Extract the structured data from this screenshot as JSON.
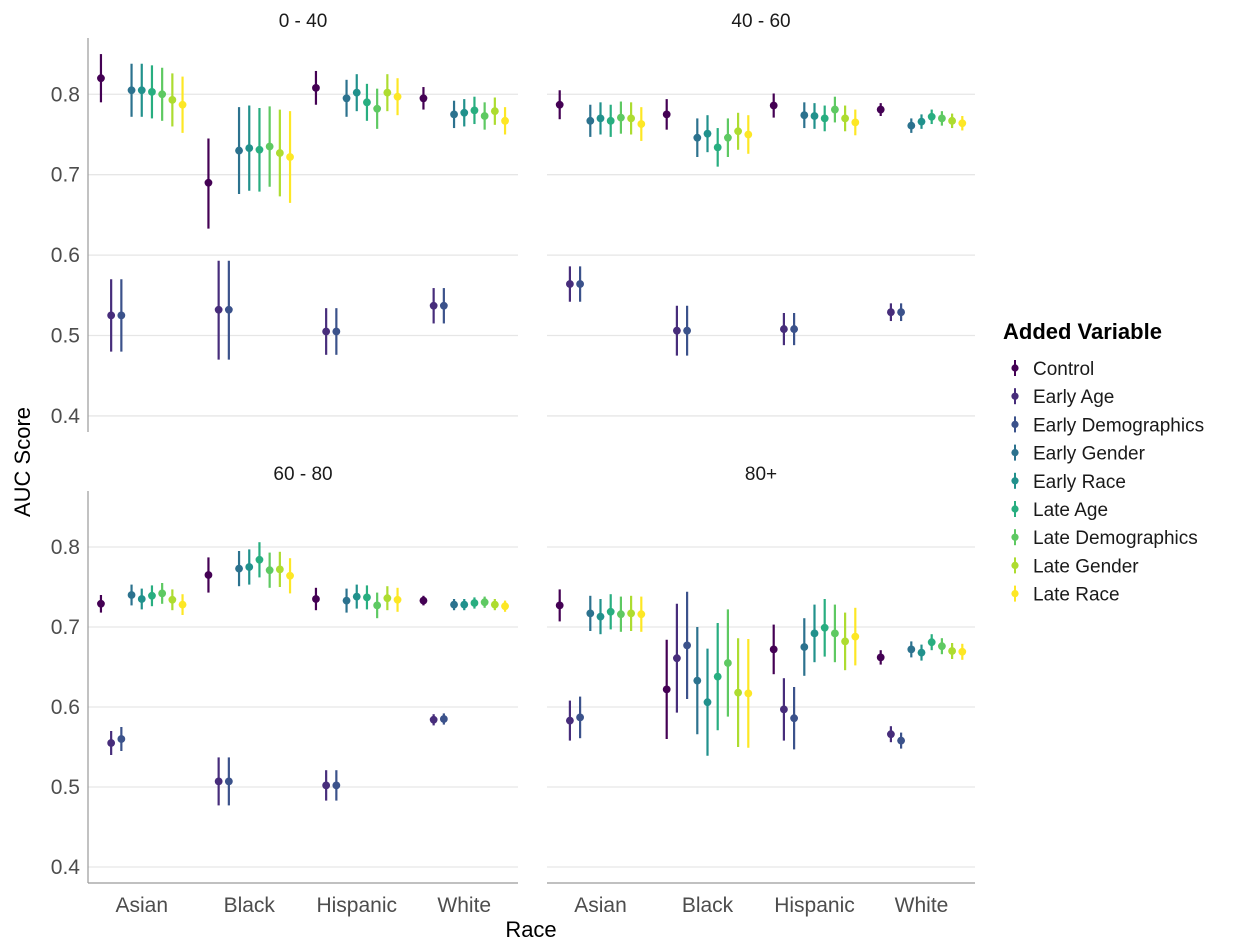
{
  "chart_data": {
    "type": "scatter",
    "subtype": "point-range (error bars), faceted 2x2",
    "xlabel": "Race",
    "ylabel": "AUC Score",
    "categories": [
      "Asian",
      "Black",
      "Hispanic",
      "White"
    ],
    "ylim": [
      0.38,
      0.87
    ],
    "y_ticks": [
      0.4,
      0.5,
      0.6,
      0.7,
      0.8
    ],
    "grid": true,
    "legend": {
      "title": "Added Variable",
      "placement": "right",
      "entries": [
        "Control",
        "Early Age",
        "Early Demographics",
        "Early Gender",
        "Early Race",
        "Late Age",
        "Late Demographics",
        "Late Gender",
        "Late Race"
      ]
    },
    "series": [
      {
        "name": "Control",
        "color": "#440154"
      },
      {
        "name": "Early Age",
        "color": "#472D7B"
      },
      {
        "name": "Early Demographics",
        "color": "#3B528B"
      },
      {
        "name": "Early Gender",
        "color": "#2C728E"
      },
      {
        "name": "Early Race",
        "color": "#21918C"
      },
      {
        "name": "Late Age",
        "color": "#28AE80"
      },
      {
        "name": "Late Demographics",
        "color": "#5EC962"
      },
      {
        "name": "Late Gender",
        "color": "#ADDC30"
      },
      {
        "name": "Late Race",
        "color": "#FDE725"
      }
    ],
    "panels": [
      {
        "title": "0 - 40",
        "data": {
          "Asian": [
            [
              0.82,
              0.79,
              0.85
            ],
            [
              0.525,
              0.48,
              0.57
            ],
            [
              0.525,
              0.48,
              0.57
            ],
            [
              0.805,
              0.772,
              0.838
            ],
            [
              0.805,
              0.772,
              0.838
            ],
            [
              0.803,
              0.77,
              0.836
            ],
            [
              0.8,
              0.767,
              0.833
            ],
            [
              0.793,
              0.76,
              0.826
            ],
            [
              0.787,
              0.752,
              0.822
            ]
          ],
          "Black": [
            [
              0.69,
              0.633,
              0.745
            ],
            [
              0.532,
              0.47,
              0.593
            ],
            [
              0.532,
              0.47,
              0.593
            ],
            [
              0.73,
              0.676,
              0.784
            ],
            [
              0.733,
              0.68,
              0.786
            ],
            [
              0.731,
              0.679,
              0.783
            ],
            [
              0.735,
              0.685,
              0.785
            ],
            [
              0.727,
              0.673,
              0.781
            ],
            [
              0.722,
              0.665,
              0.779
            ]
          ],
          "Hispanic": [
            [
              0.808,
              0.787,
              0.829
            ],
            [
              0.505,
              0.476,
              0.534
            ],
            [
              0.505,
              0.476,
              0.534
            ],
            [
              0.795,
              0.772,
              0.818
            ],
            [
              0.802,
              0.779,
              0.825
            ],
            [
              0.79,
              0.767,
              0.813
            ],
            [
              0.782,
              0.757,
              0.807
            ],
            [
              0.802,
              0.779,
              0.825
            ],
            [
              0.797,
              0.774,
              0.82
            ]
          ],
          "White": [
            [
              0.795,
              0.781,
              0.809
            ],
            [
              0.537,
              0.515,
              0.559
            ],
            [
              0.537,
              0.515,
              0.559
            ],
            [
              0.775,
              0.758,
              0.792
            ],
            [
              0.777,
              0.76,
              0.794
            ],
            [
              0.78,
              0.763,
              0.797
            ],
            [
              0.773,
              0.756,
              0.79
            ],
            [
              0.779,
              0.762,
              0.796
            ],
            [
              0.767,
              0.75,
              0.784
            ]
          ]
        }
      },
      {
        "title": "40 - 60",
        "data": {
          "Asian": [
            [
              0.787,
              0.769,
              0.805
            ],
            [
              0.564,
              0.542,
              0.586
            ],
            [
              0.564,
              0.542,
              0.586
            ],
            [
              0.767,
              0.747,
              0.787
            ],
            [
              0.77,
              0.75,
              0.79
            ],
            [
              0.767,
              0.747,
              0.787
            ],
            [
              0.771,
              0.751,
              0.791
            ],
            [
              0.77,
              0.75,
              0.79
            ],
            [
              0.763,
              0.742,
              0.784
            ]
          ],
          "Black": [
            [
              0.775,
              0.756,
              0.794
            ],
            [
              0.506,
              0.475,
              0.537
            ],
            [
              0.506,
              0.475,
              0.537
            ],
            [
              0.746,
              0.722,
              0.77
            ],
            [
              0.751,
              0.728,
              0.774
            ],
            [
              0.734,
              0.71,
              0.758
            ],
            [
              0.746,
              0.722,
              0.77
            ],
            [
              0.754,
              0.731,
              0.777
            ],
            [
              0.75,
              0.726,
              0.774
            ]
          ],
          "Hispanic": [
            [
              0.786,
              0.771,
              0.801
            ],
            [
              0.508,
              0.488,
              0.528
            ],
            [
              0.508,
              0.488,
              0.528
            ],
            [
              0.774,
              0.758,
              0.79
            ],
            [
              0.773,
              0.757,
              0.789
            ],
            [
              0.77,
              0.754,
              0.786
            ],
            [
              0.781,
              0.765,
              0.797
            ],
            [
              0.77,
              0.754,
              0.786
            ],
            [
              0.765,
              0.749,
              0.781
            ]
          ],
          "White": [
            [
              0.781,
              0.773,
              0.789
            ],
            [
              0.529,
              0.518,
              0.54
            ],
            [
              0.529,
              0.518,
              0.54
            ],
            [
              0.761,
              0.752,
              0.77
            ],
            [
              0.766,
              0.757,
              0.775
            ],
            [
              0.772,
              0.763,
              0.781
            ],
            [
              0.77,
              0.761,
              0.779
            ],
            [
              0.767,
              0.758,
              0.776
            ],
            [
              0.764,
              0.755,
              0.773
            ]
          ]
        }
      },
      {
        "title": "60 - 80",
        "data": {
          "Asian": [
            [
              0.729,
              0.718,
              0.74
            ],
            [
              0.555,
              0.54,
              0.57
            ],
            [
              0.56,
              0.545,
              0.575
            ],
            [
              0.74,
              0.727,
              0.753
            ],
            [
              0.735,
              0.722,
              0.748
            ],
            [
              0.739,
              0.726,
              0.752
            ],
            [
              0.742,
              0.729,
              0.755
            ],
            [
              0.734,
              0.721,
              0.747
            ],
            [
              0.728,
              0.715,
              0.741
            ]
          ],
          "Black": [
            [
              0.765,
              0.743,
              0.787
            ],
            [
              0.507,
              0.477,
              0.537
            ],
            [
              0.507,
              0.477,
              0.537
            ],
            [
              0.773,
              0.751,
              0.795
            ],
            [
              0.775,
              0.753,
              0.797
            ],
            [
              0.784,
              0.762,
              0.806
            ],
            [
              0.771,
              0.749,
              0.793
            ],
            [
              0.772,
              0.75,
              0.794
            ],
            [
              0.764,
              0.742,
              0.786
            ]
          ],
          "Hispanic": [
            [
              0.735,
              0.721,
              0.749
            ],
            [
              0.502,
              0.483,
              0.521
            ],
            [
              0.502,
              0.483,
              0.521
            ],
            [
              0.733,
              0.718,
              0.748
            ],
            [
              0.738,
              0.723,
              0.753
            ],
            [
              0.737,
              0.722,
              0.752
            ],
            [
              0.727,
              0.711,
              0.743
            ],
            [
              0.736,
              0.721,
              0.751
            ],
            [
              0.734,
              0.719,
              0.749
            ]
          ],
          "White": [
            [
              0.733,
              0.727,
              0.739
            ],
            [
              0.584,
              0.577,
              0.591
            ],
            [
              0.585,
              0.578,
              0.592
            ],
            [
              0.728,
              0.721,
              0.735
            ],
            [
              0.728,
              0.721,
              0.735
            ],
            [
              0.73,
              0.723,
              0.737
            ],
            [
              0.731,
              0.724,
              0.738
            ],
            [
              0.728,
              0.721,
              0.735
            ],
            [
              0.726,
              0.719,
              0.733
            ]
          ]
        }
      },
      {
        "title": "80+",
        "data": {
          "Asian": [
            [
              0.727,
              0.707,
              0.747
            ],
            [
              0.583,
              0.558,
              0.608
            ],
            [
              0.587,
              0.561,
              0.613
            ],
            [
              0.717,
              0.695,
              0.739
            ],
            [
              0.713,
              0.691,
              0.735
            ],
            [
              0.719,
              0.697,
              0.741
            ],
            [
              0.716,
              0.694,
              0.738
            ],
            [
              0.717,
              0.695,
              0.739
            ],
            [
              0.716,
              0.694,
              0.738
            ]
          ],
          "Black": [
            [
              0.622,
              0.56,
              0.684
            ],
            [
              0.661,
              0.593,
              0.729
            ],
            [
              0.677,
              0.61,
              0.744
            ],
            [
              0.633,
              0.566,
              0.7
            ],
            [
              0.606,
              0.539,
              0.673
            ],
            [
              0.638,
              0.571,
              0.705
            ],
            [
              0.655,
              0.588,
              0.722
            ],
            [
              0.618,
              0.55,
              0.686
            ],
            [
              0.617,
              0.549,
              0.685
            ]
          ],
          "Hispanic": [
            [
              0.672,
              0.641,
              0.703
            ],
            [
              0.597,
              0.558,
              0.636
            ],
            [
              0.586,
              0.547,
              0.625
            ],
            [
              0.675,
              0.639,
              0.711
            ],
            [
              0.692,
              0.656,
              0.728
            ],
            [
              0.699,
              0.663,
              0.735
            ],
            [
              0.692,
              0.656,
              0.728
            ],
            [
              0.682,
              0.646,
              0.718
            ],
            [
              0.688,
              0.652,
              0.724
            ]
          ],
          "White": [
            [
              0.662,
              0.653,
              0.671
            ],
            [
              0.566,
              0.556,
              0.576
            ],
            [
              0.558,
              0.548,
              0.568
            ],
            [
              0.672,
              0.662,
              0.682
            ],
            [
              0.668,
              0.658,
              0.678
            ],
            [
              0.681,
              0.671,
              0.691
            ],
            [
              0.676,
              0.666,
              0.686
            ],
            [
              0.67,
              0.66,
              0.68
            ],
            [
              0.669,
              0.659,
              0.679
            ]
          ]
        }
      }
    ]
  }
}
